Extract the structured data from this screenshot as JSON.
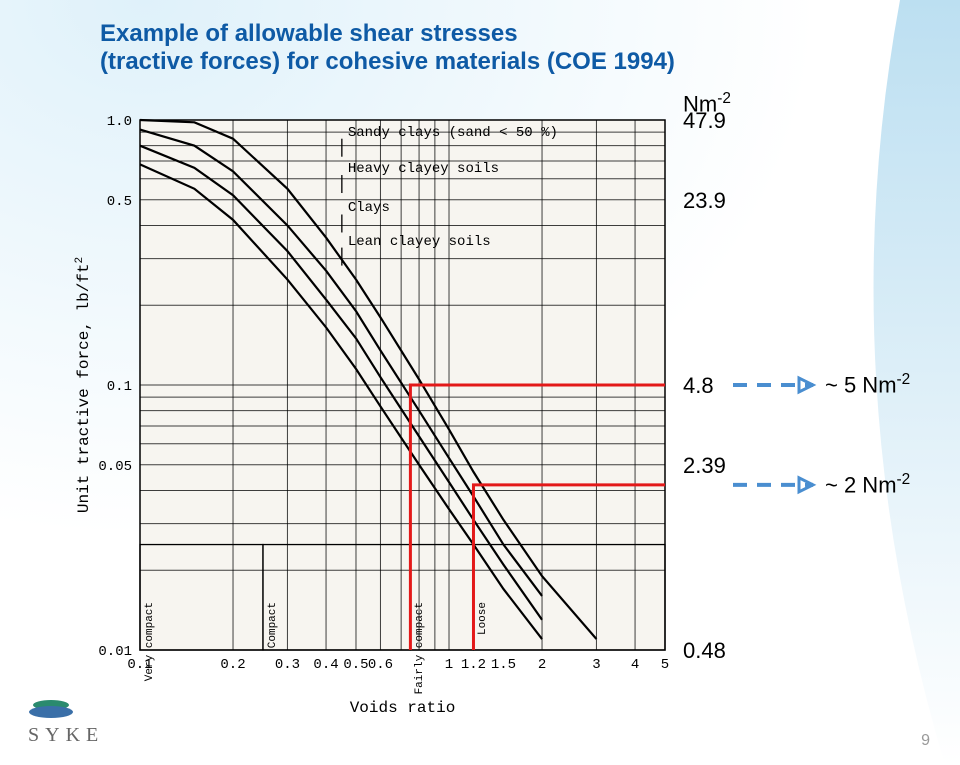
{
  "title_line1": "Example of allowable shear stresses",
  "title_line2": "(tractive forces) for cohesive materials (COE 1994)",
  "title_color": "#0e5aa5",
  "page_number": "9",
  "logo_text": "SYKE",
  "logo_color_top": "#2a8a6e",
  "logo_color_bottom": "#3a6fa8",
  "bg_gradient_from": "#dff1fa",
  "bg_gradient_to": "#ffffff",
  "side_curve_from": "#bcdff1",
  "side_curve_to": "#ffffff",
  "chart": {
    "type": "line",
    "x_axis_label": "Voids ratio",
    "y_axis_label": "Unit tractive force, lb/ft",
    "y_axis_label_exp": "2",
    "x_log": true,
    "y_log": true,
    "xlim": [
      0.1,
      5
    ],
    "ylim": [
      0.01,
      1.0
    ],
    "x_ticks": [
      0.1,
      0.2,
      0.3,
      0.4,
      0.5,
      0.6,
      1,
      1.2,
      1.5,
      2,
      3,
      4,
      5
    ],
    "x_tick_labels": [
      "0.1",
      "0.2",
      "0.3",
      "0.4",
      "0.5",
      "0.6",
      "1",
      "1.2",
      "1.5",
      "2",
      "3",
      "4",
      "5"
    ],
    "y_ticks": [
      0.01,
      0.05,
      0.1,
      0.5,
      1.0
    ],
    "y_tick_labels": [
      "0.01",
      "0.05",
      "0.1",
      "0.5",
      "1.0"
    ],
    "series": [
      {
        "label": "Sandy clays (sand < 50 %)",
        "leader_from": [
          0.45,
          0.85
        ],
        "points": [
          [
            0.1,
            1.0
          ],
          [
            0.15,
            0.98
          ],
          [
            0.2,
            0.85
          ],
          [
            0.3,
            0.55
          ],
          [
            0.4,
            0.36
          ],
          [
            0.5,
            0.25
          ],
          [
            0.6,
            0.18
          ],
          [
            0.8,
            0.105
          ],
          [
            1.0,
            0.068
          ],
          [
            1.2,
            0.047
          ],
          [
            1.5,
            0.031
          ],
          [
            2.0,
            0.019
          ],
          [
            3.0,
            0.011
          ]
        ]
      },
      {
        "label": "Heavy clayey soils",
        "leader_from": [
          0.45,
          0.62
        ],
        "points": [
          [
            0.1,
            0.92
          ],
          [
            0.15,
            0.8
          ],
          [
            0.2,
            0.64
          ],
          [
            0.3,
            0.4
          ],
          [
            0.4,
            0.27
          ],
          [
            0.5,
            0.19
          ],
          [
            0.6,
            0.135
          ],
          [
            0.8,
            0.08
          ],
          [
            1.0,
            0.053
          ],
          [
            1.2,
            0.038
          ],
          [
            1.5,
            0.025
          ],
          [
            2.0,
            0.016
          ]
        ]
      },
      {
        "label": "Clays",
        "leader_from": [
          0.45,
          0.44
        ],
        "points": [
          [
            0.1,
            0.8
          ],
          [
            0.15,
            0.66
          ],
          [
            0.2,
            0.52
          ],
          [
            0.3,
            0.32
          ],
          [
            0.4,
            0.21
          ],
          [
            0.5,
            0.15
          ],
          [
            0.6,
            0.107
          ],
          [
            0.8,
            0.064
          ],
          [
            1.0,
            0.043
          ],
          [
            1.2,
            0.031
          ],
          [
            1.5,
            0.021
          ],
          [
            2.0,
            0.013
          ]
        ]
      },
      {
        "label": "Lean clayey soils",
        "leader_from": [
          0.45,
          0.33
        ],
        "points": [
          [
            0.1,
            0.68
          ],
          [
            0.15,
            0.55
          ],
          [
            0.2,
            0.42
          ],
          [
            0.3,
            0.25
          ],
          [
            0.4,
            0.165
          ],
          [
            0.5,
            0.115
          ],
          [
            0.6,
            0.083
          ],
          [
            0.8,
            0.05
          ],
          [
            1.0,
            0.034
          ],
          [
            1.2,
            0.025
          ],
          [
            1.5,
            0.017
          ],
          [
            2.0,
            0.011
          ]
        ]
      }
    ],
    "bottom_zones": [
      {
        "label_top": "Very",
        "label_bottom": "compact",
        "x_from": 0.1,
        "x_to": 0.25
      },
      {
        "label_top": "Compact",
        "label_bottom": "",
        "x_from": 0.25,
        "x_to": 0.75
      },
      {
        "label_top": "Fairly",
        "label_bottom": "compact",
        "x_from": 0.75,
        "x_to": 1.2
      },
      {
        "label_top": "Loose",
        "label_bottom": "",
        "x_from": 1.2,
        "x_to": 5
      }
    ],
    "zone_box_ytop": 0.025,
    "zone_box_ybot": 0.01,
    "red_markers": [
      {
        "x_vert": 0.75,
        "y_horiz": 0.1,
        "x_horiz_end": 5
      },
      {
        "x_vert": 1.2,
        "y_horiz": 0.042,
        "x_horiz_end": 5
      }
    ],
    "line_color": "#000000",
    "grid_color": "#000000",
    "red_color": "#e31919",
    "background": "#f7f5f0",
    "line_width": 2.2,
    "grid_width": 1,
    "red_width": 3
  },
  "right_side": {
    "unit_label": "Nm",
    "unit_exp": "-2",
    "ticks": [
      {
        "value": "47.9",
        "at_y_lbft2": 1.0
      },
      {
        "value": "23.9",
        "at_y_lbft2": 0.5
      },
      {
        "value": "4.8",
        "at_y_lbft2": 0.1
      },
      {
        "value": "2.39",
        "at_y_lbft2": 0.05
      },
      {
        "value": "0.48",
        "at_y_lbft2": 0.01
      }
    ],
    "callouts": [
      {
        "text_prefix": "~ 5 Nm",
        "exp": "-2",
        "at_y_lbft2": 0.1
      },
      {
        "text_prefix": "~ 2 Nm",
        "exp": "-2",
        "at_y_lbft2": 0.042
      }
    ],
    "dash_color": "#4a8ed0",
    "arrow_color": "#4a8ed0"
  }
}
